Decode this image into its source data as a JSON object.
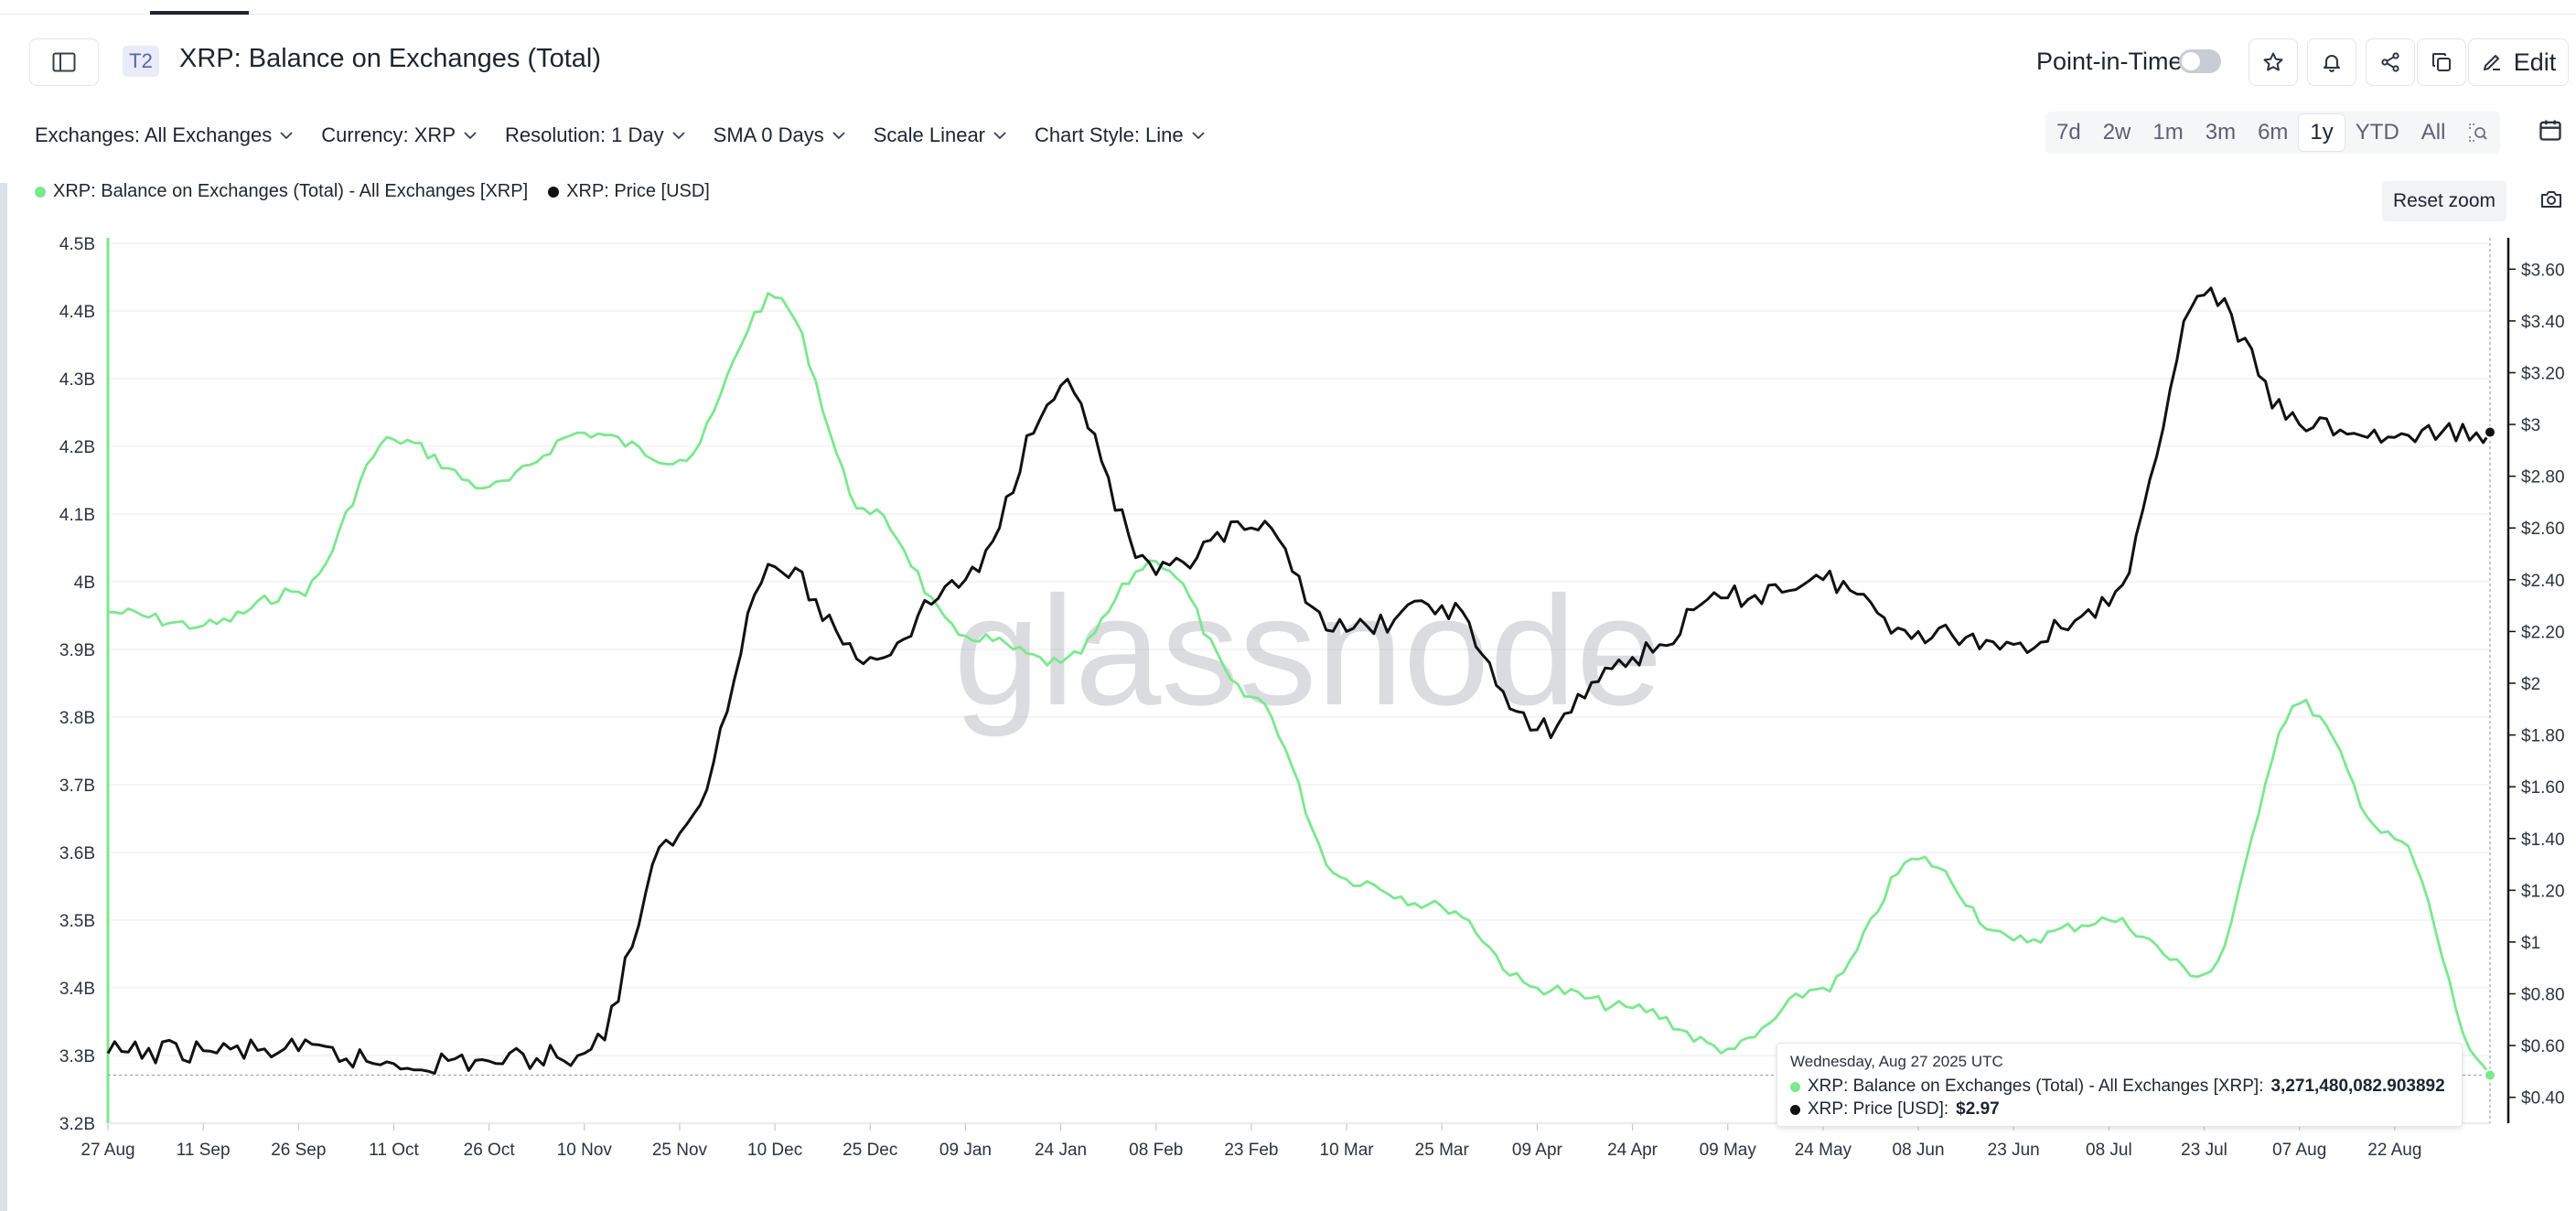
{
  "header": {
    "badge": "T2",
    "title": "XRP: Balance on Exchanges (Total)",
    "point_in_time_label": "Point-in-Time",
    "edit_label": "Edit"
  },
  "controls": [
    {
      "label": "Exchanges: All Exchanges"
    },
    {
      "label": "Currency: XRP"
    },
    {
      "label": "Resolution: 1 Day"
    },
    {
      "label": "SMA 0 Days"
    },
    {
      "label": "Scale Linear"
    },
    {
      "label": "Chart Style: Line"
    }
  ],
  "ranges": [
    "7d",
    "2w",
    "1m",
    "3m",
    "6m",
    "1y",
    "YTD",
    "All"
  ],
  "active_range": "1y",
  "reset_zoom_label": "Reset zoom",
  "watermark": "glassnode",
  "colors": {
    "balance": "#7be88e",
    "price": "#111111"
  },
  "tooltip": {
    "date": "Wednesday, Aug 27 2025 UTC",
    "row1_label": "XRP: Balance on Exchanges (Total) - All Exchanges [XRP]:",
    "row1_value": "3,271,480,082.903892",
    "row2_label": "XRP: Price [USD]:",
    "row2_value": "$2.97"
  },
  "chart_data": {
    "type": "line",
    "x": [
      "27 Aug",
      "11 Sep",
      "26 Sep",
      "11 Oct",
      "26 Oct",
      "10 Nov",
      "25 Nov",
      "10 Dec",
      "25 Dec",
      "09 Jan",
      "24 Jan",
      "08 Feb",
      "23 Feb",
      "10 Mar",
      "25 Mar",
      "09 Apr",
      "24 Apr",
      "09 May",
      "24 May",
      "08 Jun",
      "23 Jun",
      "08 Jul",
      "23 Jul",
      "07 Aug",
      "22 Aug",
      "27 Aug"
    ],
    "x_ticks": [
      "27 Aug",
      "11 Sep",
      "26 Sep",
      "11 Oct",
      "26 Oct",
      "10 Nov",
      "25 Nov",
      "10 Dec",
      "25 Dec",
      "09 Jan",
      "24 Jan",
      "08 Feb",
      "23 Feb",
      "10 Mar",
      "25 Mar",
      "09 Apr",
      "24 Apr",
      "09 May",
      "24 May",
      "08 Jun",
      "23 Jun",
      "08 Jul",
      "23 Jul",
      "07 Aug",
      "22 Aug"
    ],
    "y_left_ticks": [
      "3.2B",
      "3.3B",
      "3.4B",
      "3.5B",
      "3.6B",
      "3.7B",
      "3.8B",
      "3.9B",
      "4B",
      "4.1B",
      "4.2B",
      "4.3B",
      "4.4B",
      "4.5B"
    ],
    "y_left_range": [
      3.2,
      4.5
    ],
    "y_left_unit": "B",
    "y_right_ticks": [
      "$0.40",
      "$0.60",
      "$0.80",
      "$1",
      "$1.20",
      "$1.40",
      "$1.60",
      "$1.80",
      "$2",
      "$2.20",
      "$2.40",
      "$2.60",
      "$2.80",
      "$3",
      "$3.20",
      "$3.40",
      "$3.60"
    ],
    "y_right_range": [
      0.3,
      3.7
    ],
    "legend_position": "top-left",
    "grid": true,
    "series": [
      {
        "name": "XRP: Balance on Exchanges (Total) - All Exchanges [XRP]",
        "axis": "left",
        "values": [
          3.955,
          3.935,
          3.985,
          4.21,
          4.14,
          4.22,
          4.18,
          4.42,
          4.1,
          3.92,
          3.88,
          4.03,
          3.83,
          3.56,
          3.52,
          3.4,
          3.37,
          3.31,
          3.4,
          3.59,
          3.47,
          3.5,
          3.42,
          3.82,
          3.62,
          3.271
        ]
      },
      {
        "name": "XRP: Price [USD]",
        "axis": "right",
        "values": [
          0.57,
          0.58,
          0.58,
          0.53,
          0.54,
          0.57,
          1.42,
          2.45,
          2.1,
          2.4,
          3.15,
          2.42,
          2.6,
          2.2,
          2.3,
          1.82,
          2.1,
          2.33,
          2.4,
          2.2,
          2.15,
          2.3,
          3.5,
          3.0,
          2.95,
          2.97
        ]
      }
    ]
  }
}
